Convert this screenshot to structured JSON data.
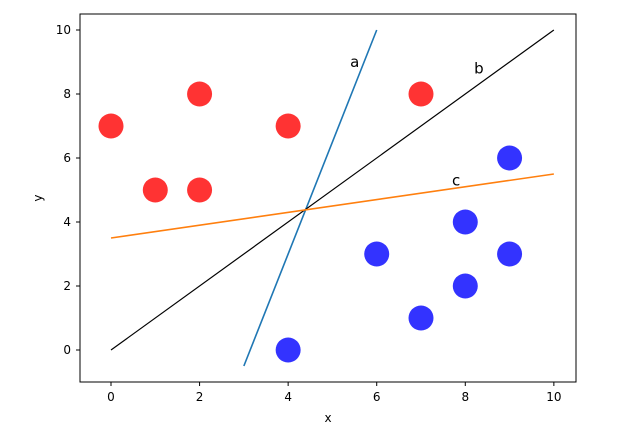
{
  "chart_data": {
    "type": "scatter",
    "xlabel": "x",
    "ylabel": "y",
    "xlim": [
      -0.7,
      10.5
    ],
    "ylim": [
      -1.0,
      10.5
    ],
    "xticks": [
      0,
      2,
      4,
      6,
      8,
      10
    ],
    "yticks": [
      0,
      2,
      4,
      6,
      8,
      10
    ],
    "grid": false,
    "series": [
      {
        "kind": "points",
        "color": "#ff0000",
        "points": [
          [
            0,
            7
          ],
          [
            1,
            5
          ],
          [
            2,
            8
          ],
          [
            2,
            5
          ],
          [
            4,
            7
          ],
          [
            7,
            8
          ]
        ]
      },
      {
        "kind": "points",
        "color": "#0000ff",
        "points": [
          [
            4,
            0
          ],
          [
            6,
            3
          ],
          [
            7,
            1
          ],
          [
            8,
            2
          ],
          [
            8,
            4
          ],
          [
            9,
            3
          ],
          [
            9,
            6
          ]
        ]
      },
      {
        "kind": "line",
        "name": "a",
        "color": "#1f77b4",
        "points": [
          [
            3,
            -0.5
          ],
          [
            6,
            10
          ]
        ]
      },
      {
        "kind": "line",
        "name": "b",
        "color": "#000000",
        "points": [
          [
            0,
            0
          ],
          [
            10,
            10
          ]
        ]
      },
      {
        "kind": "line",
        "name": "c",
        "color": "#ff7f0e",
        "points": [
          [
            0,
            3.5
          ],
          [
            10,
            5.5
          ]
        ]
      }
    ],
    "annotations": [
      {
        "text": "a",
        "x": 5.4,
        "y": 9.0
      },
      {
        "text": "b",
        "x": 8.2,
        "y": 8.8
      },
      {
        "text": "c",
        "x": 7.7,
        "y": 5.3
      }
    ]
  }
}
